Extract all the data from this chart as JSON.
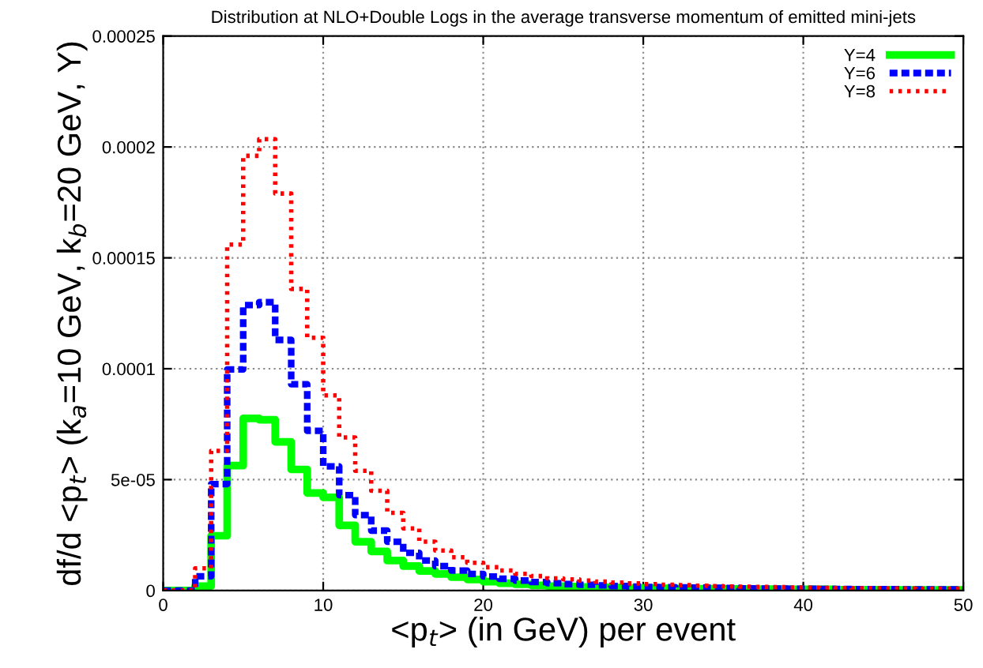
{
  "chart_data": {
    "type": "histogram",
    "title": "Distribution at NLO+Double Logs in the average transverse momentum of emitted mini-jets",
    "xlabel": "<p$_{t}$> (in GeV) per event",
    "ylabel": "df/d <p$_{t}$> (k$_{a}$=10 GeV, k$_{b}$=20 GeV, Y)",
    "bins": [
      0,
      1,
      2,
      3,
      4,
      5,
      6,
      7,
      8,
      9,
      10,
      11,
      12,
      13,
      14,
      15,
      16,
      17,
      18,
      19,
      20,
      21,
      22,
      23,
      24,
      25,
      26,
      27,
      28,
      29,
      30,
      31,
      32,
      33,
      34,
      35,
      36,
      37,
      38,
      39,
      40,
      41,
      42,
      43,
      44,
      45,
      46,
      47,
      48,
      49,
      50
    ],
    "series": [
      {
        "name": "Y=4",
        "color": "#00ff00",
        "line_style": "solid",
        "values": [
          0,
          0,
          2e-06,
          2.47e-05,
          5.63e-05,
          7.76e-05,
          7.7e-05,
          6.7e-05,
          5.46e-05,
          4.4e-05,
          4.2e-05,
          2.94e-05,
          2.2e-05,
          1.76e-05,
          1.35e-05,
          1.1e-05,
          8.8e-06,
          7.5e-06,
          6e-06,
          5e-06,
          4e-06,
          3.3e-06,
          2.8e-06,
          2.3e-06,
          2e-06,
          1.8e-06,
          1.6e-06,
          1.4e-06,
          1.3e-06,
          1.2e-06,
          1.1e-06,
          1e-06,
          9e-07,
          8e-07,
          8e-07,
          7e-07,
          7e-07,
          6e-07,
          6e-07,
          5e-07,
          5e-07,
          5e-07,
          4e-07,
          4e-07,
          4e-07,
          4e-07,
          3e-07,
          3e-07,
          3e-07,
          3e-07
        ]
      },
      {
        "name": "Y=6",
        "color": "#0000ff",
        "line_style": "dashed",
        "values": [
          0,
          0,
          6.4e-06,
          4.8e-05,
          9.97e-05,
          0.0001287,
          0.00013,
          0.000113,
          9.3e-05,
          7.2e-05,
          5.6e-05,
          4.3e-05,
          3.4e-05,
          2.7e-05,
          2.2e-05,
          1.7e-05,
          1.35e-05,
          1.1e-05,
          9e-06,
          7.5e-06,
          6.3e-06,
          5.3e-06,
          4.5e-06,
          3.8e-06,
          3.3e-06,
          2.9e-06,
          2.6e-06,
          2.3e-06,
          2e-06,
          1.8e-06,
          1.6e-06,
          1.5e-06,
          1.4e-06,
          1.3e-06,
          1.2e-06,
          1.1e-06,
          1e-06,
          9e-07,
          9e-07,
          8e-07,
          8e-07,
          7e-07,
          7e-07,
          6e-07,
          6e-07,
          6e-07,
          5e-07,
          5e-07,
          5e-07,
          5e-07
        ]
      },
      {
        "name": "Y=8",
        "color": "#ff0000",
        "line_style": "dotted",
        "values": [
          0,
          0,
          1e-05,
          6.3e-05,
          0.000156,
          0.000196,
          0.0002035,
          0.000179,
          0.000136,
          0.000114,
          8.8e-05,
          6.9e-05,
          5.4e-05,
          4.5e-05,
          3.5e-05,
          2.8e-05,
          2.2e-05,
          1.8e-05,
          1.5e-05,
          1.25e-05,
          1.05e-05,
          9e-06,
          7.5e-06,
          6.5e-06,
          5.5e-06,
          5e-06,
          4.5e-06,
          4e-06,
          3.6e-06,
          3.2e-06,
          2.9e-06,
          2.6e-06,
          2.4e-06,
          2.2e-06,
          2e-06,
          1.8e-06,
          1.7e-06,
          1.6e-06,
          1.5e-06,
          1.4e-06,
          1.3e-06,
          1.2e-06,
          1.1e-06,
          1e-06,
          1e-06,
          9e-07,
          9e-07,
          8e-07,
          8e-07,
          8e-07
        ]
      }
    ],
    "xlim": [
      0,
      50
    ],
    "xticks": [
      0,
      10,
      20,
      30,
      40,
      50
    ],
    "ylim": [
      0,
      0.00025
    ],
    "yticks": [
      0,
      {
        "value": 5e-05,
        "label": "5e-05"
      },
      {
        "value": 0.0001,
        "label": "0.0001"
      },
      {
        "value": 0.00015,
        "label": "0.00015"
      },
      {
        "value": 0.0002,
        "label": "0.0002"
      },
      {
        "value": 0.00025,
        "label": "0.00025"
      }
    ],
    "grid": true,
    "legend": "top right"
  }
}
